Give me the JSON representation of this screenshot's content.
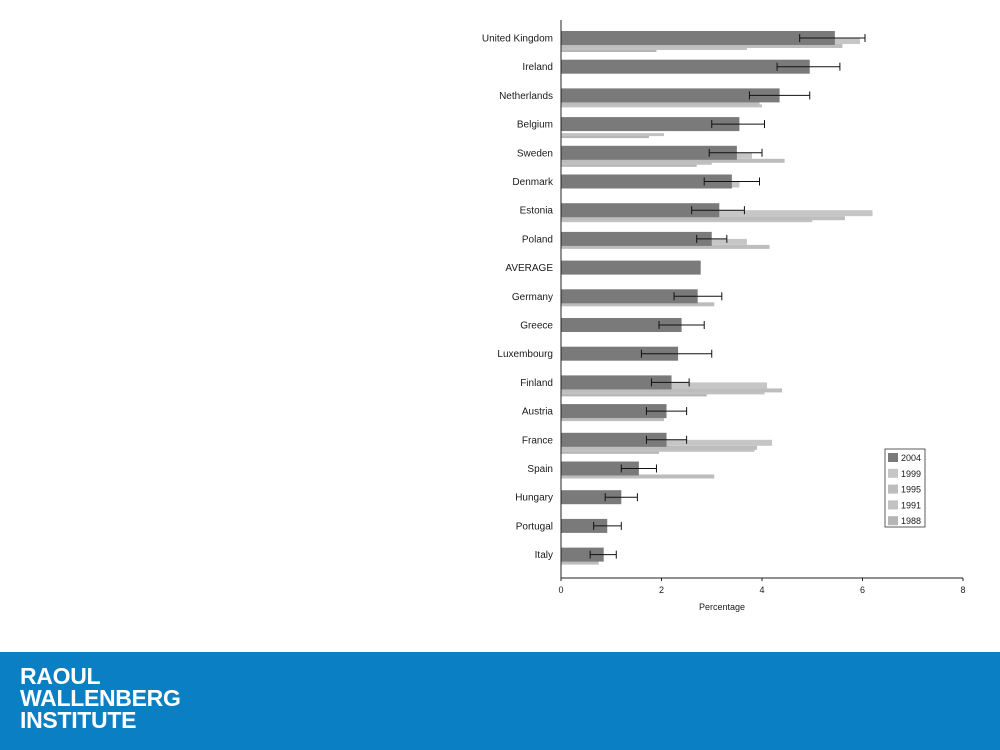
{
  "chart_data": {
    "type": "bar",
    "orientation": "horizontal",
    "xlabel": "Percentage",
    "xlim": [
      0,
      8
    ],
    "xticks": [
      0,
      2,
      4,
      6,
      8
    ],
    "grid": false,
    "legend_position": "bottom-right",
    "categories": [
      "United Kingdom",
      "Ireland",
      "Netherlands",
      "Belgium",
      "Sweden",
      "Denmark",
      "Estonia",
      "Poland",
      "AVERAGE",
      "Germany",
      "Greece",
      "Luxembourg",
      "Finland",
      "Austria",
      "France",
      "Spain",
      "Hungary",
      "Portugal",
      "Italy"
    ],
    "series": [
      {
        "name": "2004",
        "color": "#7a7a7a",
        "values": [
          5.45,
          4.95,
          4.35,
          3.55,
          3.5,
          3.4,
          3.15,
          3.0,
          2.78,
          2.72,
          2.4,
          2.33,
          2.2,
          2.1,
          2.1,
          1.55,
          1.2,
          0.92,
          0.85
        ],
        "error_low": [
          4.75,
          4.3,
          3.75,
          3.0,
          2.95,
          2.85,
          2.6,
          2.7,
          null,
          2.25,
          1.95,
          1.6,
          1.8,
          1.7,
          1.7,
          1.2,
          0.88,
          0.65,
          0.58
        ],
        "error_high": [
          6.05,
          5.55,
          4.95,
          4.05,
          4.0,
          3.95,
          3.65,
          3.3,
          null,
          3.2,
          2.85,
          3.0,
          2.55,
          2.5,
          2.5,
          1.9,
          1.52,
          1.2,
          1.1
        ]
      },
      {
        "name": "1999",
        "color": "#c6c6c6",
        "values": [
          5.95,
          null,
          3.4,
          3.1,
          3.8,
          3.55,
          6.2,
          3.7,
          null,
          null,
          null,
          null,
          4.1,
          null,
          4.2,
          null,
          null,
          null,
          null
        ]
      },
      {
        "name": "1995",
        "color": "#bdbdbd",
        "values": [
          5.6,
          null,
          3.95,
          null,
          4.45,
          null,
          5.65,
          4.15,
          null,
          3.05,
          null,
          null,
          4.4,
          2.05,
          3.9,
          3.05,
          null,
          null,
          0.75
        ]
      },
      {
        "name": "1991",
        "color": "#c2c2c2",
        "values": [
          3.7,
          null,
          4.0,
          2.05,
          3.0,
          null,
          5.0,
          null,
          null,
          null,
          null,
          null,
          4.05,
          null,
          3.85,
          null,
          null,
          null,
          null
        ]
      },
      {
        "name": "1988",
        "color": "#b5b5b5",
        "values": [
          1.9,
          null,
          null,
          1.75,
          2.7,
          null,
          null,
          null,
          null,
          null,
          null,
          null,
          2.9,
          null,
          1.95,
          null,
          null,
          null,
          null
        ]
      }
    ]
  },
  "footer": {
    "background": "#0a7fc4",
    "logo_lines": [
      "RAOUL",
      "WALLENBERG",
      "INSTITUTE"
    ]
  }
}
